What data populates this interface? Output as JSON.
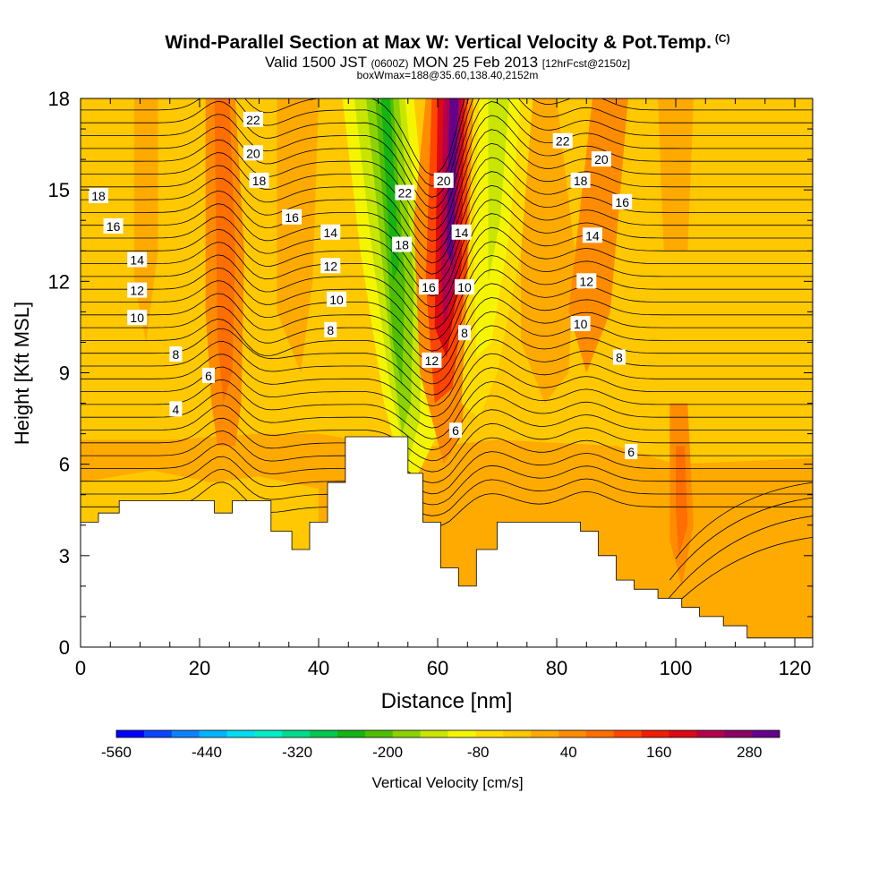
{
  "title": {
    "main": "Wind-Parallel Section at Max W: Vertical Velocity & Pot.Temp.",
    "copyright": "(C)",
    "valid_prefix": "Valid 1500 JST",
    "valid_zulu": "(0600Z)",
    "valid_date": "MON 25 Feb 2013",
    "forecast": "[12hrFcst@2150z]",
    "boxwmax": "boxWmax=188@35.60,138.40,2152m"
  },
  "chart_data": {
    "type": "heatmap",
    "xlabel": "Distance [nm]",
    "ylabel": "Height [Kft MSL]",
    "xlim": [
      0,
      123
    ],
    "ylim": [
      0,
      18
    ],
    "x_ticks": [
      0,
      20,
      40,
      60,
      80,
      100,
      120
    ],
    "y_ticks": [
      0,
      3,
      6,
      9,
      12,
      15,
      18
    ],
    "grid": false,
    "colorbar": {
      "label": "Vertical Velocity [cm/s]",
      "tick_labels": [
        "-560",
        "-440",
        "-320",
        "-200",
        "-80",
        "40",
        "160",
        "280"
      ],
      "tick_values": [
        -560,
        -440,
        -320,
        -200,
        -80,
        40,
        160,
        280
      ],
      "range": [
        -560,
        320
      ],
      "step": 40,
      "colors": [
        "#0000ff",
        "#0a46ff",
        "#0a82ff",
        "#00b4ff",
        "#00dcf0",
        "#00eec8",
        "#00dc8c",
        "#00c850",
        "#14b414",
        "#50be00",
        "#8cd200",
        "#c8e600",
        "#f5f500",
        "#ffdc00",
        "#ffc800",
        "#ffaa00",
        "#ff8c00",
        "#ff6e00",
        "#ff4600",
        "#f01e00",
        "#dc0a14",
        "#b4004b",
        "#8c0064",
        "#64008c"
      ]
    },
    "terrain": {
      "description": "white terrain profile (height in Kft vs distance in nm)",
      "x": [
        0,
        3,
        3,
        6.5,
        6.5,
        22.5,
        22.5,
        25.5,
        25.5,
        32,
        32,
        35.5,
        35.5,
        38.5,
        38.5,
        41.5,
        41.5,
        44.5,
        44.5,
        48,
        48,
        53,
        53,
        55,
        55,
        57.5,
        57.5,
        60.5,
        60.5,
        63.5,
        63.5,
        66.5,
        66.5,
        70,
        70,
        75,
        75,
        84,
        84,
        87,
        87,
        90,
        90,
        93,
        93,
        97,
        97,
        101,
        101,
        104,
        104,
        108,
        108,
        112,
        112,
        123
      ],
      "y": [
        4.1,
        4.1,
        4.4,
        4.4,
        4.8,
        4.8,
        4.4,
        4.4,
        4.8,
        4.8,
        3.8,
        3.8,
        3.2,
        3.2,
        4.1,
        4.1,
        5.4,
        5.4,
        6.9,
        6.9,
        6.9,
        6.9,
        6.9,
        6.9,
        5.7,
        5.7,
        4.1,
        4.1,
        2.6,
        2.6,
        2.0,
        2.0,
        3.2,
        3.2,
        4.1,
        4.1,
        4.1,
        4.1,
        3.8,
        3.8,
        3.0,
        3.0,
        2.2,
        2.2,
        1.9,
        1.9,
        1.6,
        1.6,
        1.3,
        1.3,
        1.0,
        1.0,
        0.7,
        0.7,
        0.3,
        0.3
      ]
    },
    "contour_labels": [
      {
        "text": "22",
        "x": 29,
        "y": 17.3
      },
      {
        "text": "20",
        "x": 29,
        "y": 16.2
      },
      {
        "text": "18",
        "x": 30,
        "y": 15.3
      },
      {
        "text": "16",
        "x": 35.5,
        "y": 14.1
      },
      {
        "text": "14",
        "x": 42,
        "y": 13.6
      },
      {
        "text": "12",
        "x": 42,
        "y": 12.5
      },
      {
        "text": "10",
        "x": 43,
        "y": 11.4
      },
      {
        "text": "8",
        "x": 42,
        "y": 10.4
      },
      {
        "text": "18",
        "x": 3,
        "y": 14.8
      },
      {
        "text": "16",
        "x": 5.5,
        "y": 13.8
      },
      {
        "text": "14",
        "x": 9.5,
        "y": 12.7
      },
      {
        "text": "12",
        "x": 9.5,
        "y": 11.7
      },
      {
        "text": "10",
        "x": 9.5,
        "y": 10.8
      },
      {
        "text": "8",
        "x": 16,
        "y": 9.6
      },
      {
        "text": "6",
        "x": 21.5,
        "y": 8.9
      },
      {
        "text": "4",
        "x": 16,
        "y": 7.8
      },
      {
        "text": "22",
        "x": 54.5,
        "y": 14.9
      },
      {
        "text": "18",
        "x": 54,
        "y": 13.2
      },
      {
        "text": "16",
        "x": 58.5,
        "y": 11.8
      },
      {
        "text": "12",
        "x": 59,
        "y": 9.4
      },
      {
        "text": "20",
        "x": 61,
        "y": 15.3
      },
      {
        "text": "14",
        "x": 64,
        "y": 13.6
      },
      {
        "text": "10",
        "x": 64.5,
        "y": 11.8
      },
      {
        "text": "8",
        "x": 64.5,
        "y": 10.3
      },
      {
        "text": "6",
        "x": 63,
        "y": 7.1
      },
      {
        "text": "22",
        "x": 81,
        "y": 16.6
      },
      {
        "text": "20",
        "x": 87.5,
        "y": 16.0
      },
      {
        "text": "18",
        "x": 84,
        "y": 15.3
      },
      {
        "text": "16",
        "x": 91,
        "y": 14.6
      },
      {
        "text": "14",
        "x": 86,
        "y": 13.5
      },
      {
        "text": "12",
        "x": 85,
        "y": 12.0
      },
      {
        "text": "10",
        "x": 84,
        "y": 10.6
      },
      {
        "text": "8",
        "x": 90.5,
        "y": 9.5
      },
      {
        "text": "6",
        "x": 92.5,
        "y": 6.4
      }
    ]
  }
}
